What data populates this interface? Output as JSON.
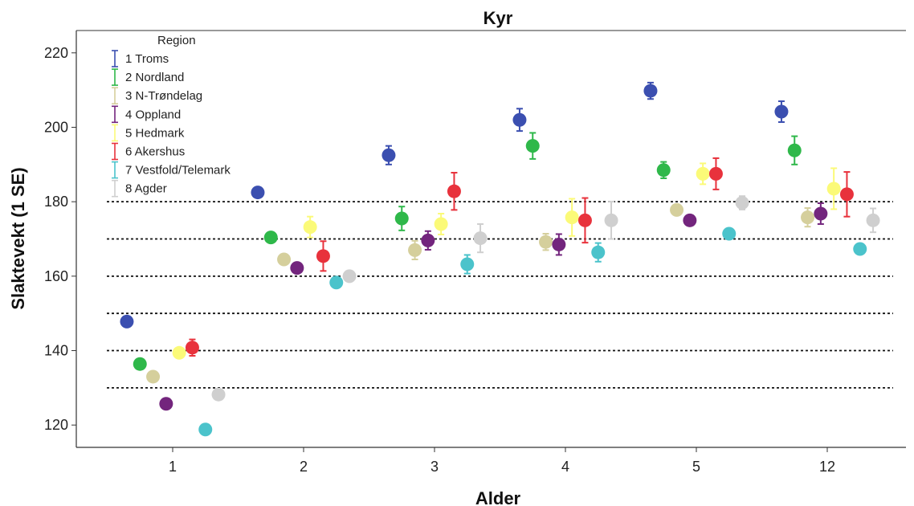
{
  "chart_data": {
    "type": "scatter",
    "title": "Kyr",
    "xlabel": "Alder",
    "ylabel": "Slaktevekt (1 SE)",
    "categories": [
      "1",
      "2",
      "3",
      "4",
      "5",
      "12"
    ],
    "ylim": [
      114,
      226
    ],
    "yticks": [
      120,
      140,
      160,
      180,
      200,
      220
    ],
    "reference_lines": [
      130,
      140,
      150,
      160,
      170,
      180
    ],
    "grid": false,
    "legend": {
      "title": "Region",
      "placement": "top-left"
    },
    "series": [
      {
        "name": "1 Troms",
        "color": "#3b4fb0",
        "values": [
          147.8,
          182.5,
          192.5,
          202,
          209.8,
          204.2
        ],
        "se": [
          0.8,
          1.2,
          2.5,
          3,
          2.2,
          2.8
        ]
      },
      {
        "name": "2 Nordland",
        "color": "#2fb84a",
        "values": [
          136.4,
          170.4,
          175.5,
          195,
          188.5,
          193.8
        ],
        "se": [
          0.6,
          1.2,
          3.2,
          3.5,
          2.2,
          3.8
        ]
      },
      {
        "name": "3 N-Trøndelag",
        "color": "#d5cf9c",
        "values": [
          133,
          164.5,
          167,
          169.2,
          177.8,
          175.8
        ],
        "se": [
          0.6,
          1,
          2.5,
          2.2,
          1.2,
          2.5
        ]
      },
      {
        "name": "4 Oppland",
        "color": "#73257d",
        "values": [
          125.7,
          162.2,
          169.6,
          168.5,
          175,
          176.8
        ],
        "se": [
          0.6,
          1,
          2.5,
          2.8,
          1.2,
          2.8
        ]
      },
      {
        "name": "5 Hedmark",
        "color": "#fbfa78",
        "values": [
          139.4,
          173.2,
          174,
          175.8,
          187.5,
          183.5
        ],
        "se": [
          1,
          2.8,
          2.8,
          5,
          2.8,
          5.5
        ]
      },
      {
        "name": "6 Akershus",
        "color": "#e8323c",
        "values": [
          140.8,
          165.4,
          182.8,
          175,
          187.5,
          182
        ],
        "se": [
          2.2,
          4,
          5,
          6,
          4.2,
          6
        ]
      },
      {
        "name": "7 Vestfold/Telemark",
        "color": "#4bc3cb",
        "values": [
          118.8,
          158.3,
          163.2,
          166.4,
          171.4,
          167.3
        ],
        "se": [
          0.6,
          1.2,
          2.5,
          2.5,
          1.2,
          1.2
        ]
      },
      {
        "name": "8 Agder",
        "color": "#cfcfcf",
        "values": [
          128.2,
          160,
          170.2,
          175,
          179.7,
          175
        ],
        "se": [
          0.8,
          1.2,
          3.8,
          5,
          1.8,
          3.2
        ]
      }
    ]
  }
}
